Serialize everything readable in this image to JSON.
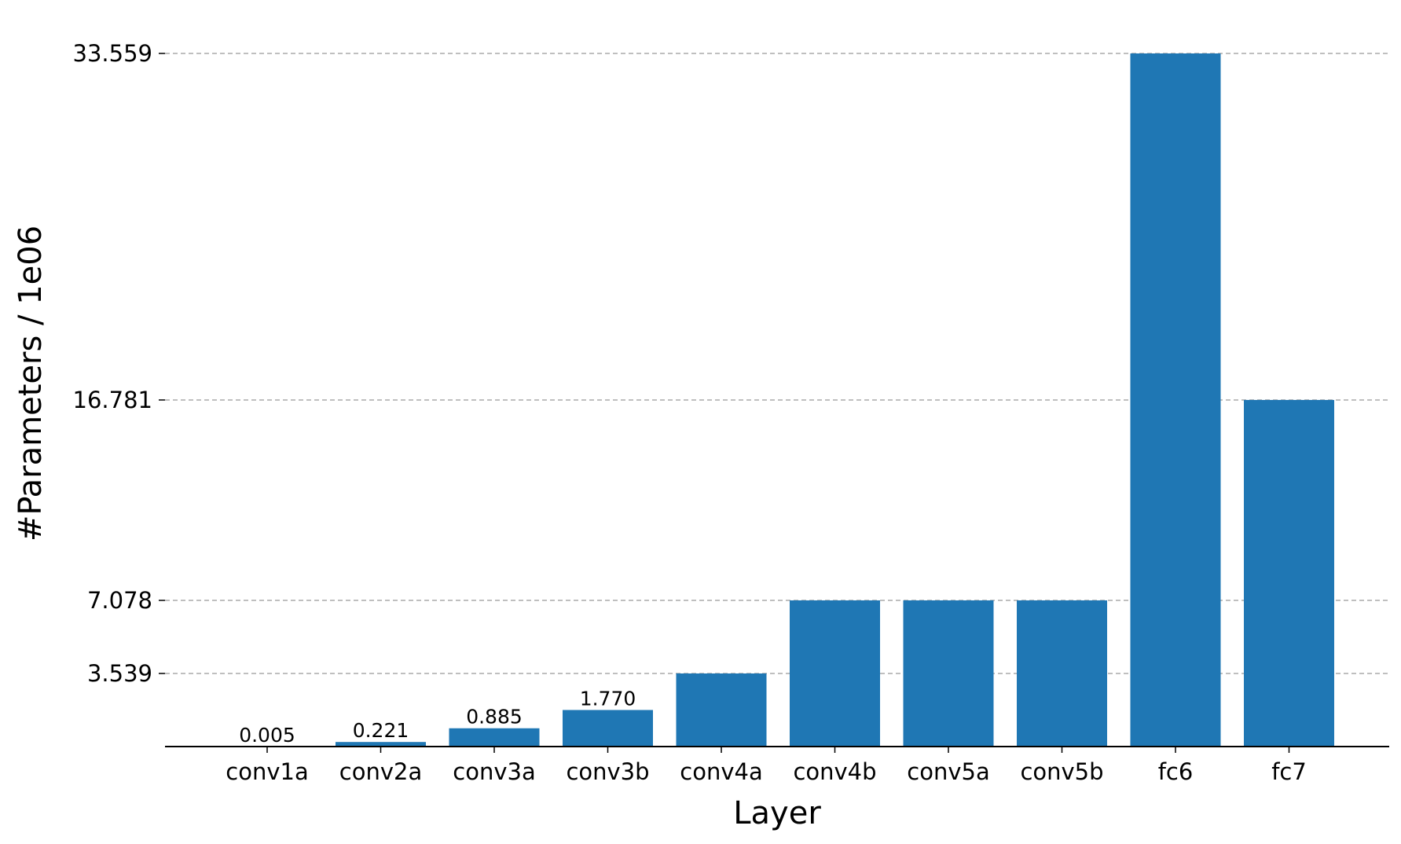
{
  "chart_data": {
    "type": "bar",
    "categories": [
      "conv1a",
      "conv2a",
      "conv3a",
      "conv3b",
      "conv4a",
      "conv4b",
      "conv5a",
      "conv5b",
      "fc6",
      "fc7"
    ],
    "values": [
      0.005,
      0.221,
      0.885,
      1.77,
      3.539,
      7.078,
      7.078,
      7.078,
      33.559,
      16.781
    ],
    "bar_labels": [
      "0.005",
      "0.221",
      "0.885",
      "1.770",
      "",
      "",
      "",
      "",
      "",
      ""
    ],
    "yticks": [
      3.539,
      7.078,
      16.781,
      33.559
    ],
    "ytick_labels": [
      "3.539",
      "7.078",
      "16.781",
      "33.559"
    ],
    "xlabel": "Layer",
    "ylabel": "#Parameters / 1e06",
    "title": "",
    "ylim": [
      0,
      33.559
    ],
    "grid": "horizontal dashed at y ticks",
    "colors": {
      "bar": "#1f77b4",
      "grid": "#aaaaaa",
      "axis": "#000000"
    }
  }
}
